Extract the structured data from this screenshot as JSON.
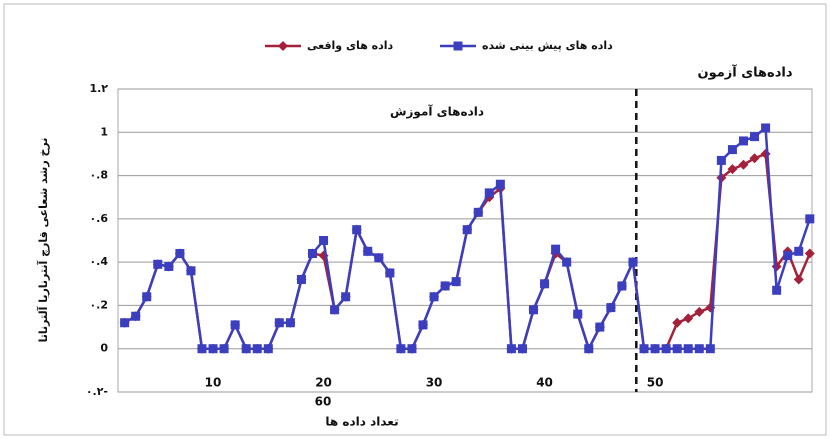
{
  "chart_data": {
    "type": "line",
    "legend_position": "top",
    "annotations": [
      "داده‌های آموزش",
      "داده‌های آزمون"
    ],
    "y_label": "نرخ رشد شعاعی قارچ آنترناریا آلترناتا",
    "x_label": "تعداد داده ها",
    "stray_tick_label": "60",
    "divider_x": 48.3,
    "grid": true,
    "xlim": [
      1.4,
      64.2
    ],
    "xticks": [
      10,
      20,
      30,
      40,
      50
    ],
    "ylim": [
      -0.2,
      1.2
    ],
    "yticks": [
      {
        "value": -0.2,
        "label": "۰.۲-"
      },
      0,
      {
        "value": 0.2,
        "label": "۰.2"
      },
      {
        "value": 0.4,
        "label": "۰.4"
      },
      {
        "value": 0.6,
        "label": "۰.6"
      },
      {
        "value": 0.8,
        "label": "۰.8"
      },
      1,
      {
        "value": 1.2,
        "label": "1.۲"
      }
    ],
    "x": [
      2,
      3,
      4,
      5,
      6,
      7,
      8,
      9,
      10,
      11,
      12,
      13,
      14,
      15,
      16,
      17,
      18,
      19,
      20,
      21,
      22,
      23,
      24,
      25,
      26,
      27,
      28,
      29,
      30,
      31,
      32,
      33,
      34,
      35,
      36,
      37,
      38,
      39,
      40,
      41,
      42,
      43,
      44,
      45,
      46,
      47,
      48,
      49,
      50,
      51,
      52,
      53,
      54,
      55,
      56,
      57,
      58,
      59,
      60,
      61,
      62,
      63,
      64
    ],
    "series": [
      {
        "name": "داده های واقعی",
        "color": "#a3213b",
        "marker": "diamond",
        "values": [
          0.12,
          0.15,
          0.24,
          0.39,
          0.38,
          0.44,
          0.36,
          0,
          0,
          0,
          0.11,
          0,
          0,
          0,
          0.12,
          0.12,
          0.32,
          0.44,
          0.43,
          0.18,
          0.24,
          0.55,
          0.45,
          0.42,
          0.35,
          0,
          0,
          0.11,
          0.24,
          0.29,
          0.31,
          0.55,
          0.63,
          0.7,
          0.74,
          0,
          0,
          0.18,
          0.3,
          0.44,
          0.4,
          0.16,
          0,
          0.1,
          0.19,
          0.29,
          0.4,
          0,
          0,
          0,
          0.12,
          0.14,
          0.17,
          0.19,
          0.79,
          0.83,
          0.85,
          0.88,
          0.9,
          0.38,
          0.45,
          0.32,
          0.44
        ]
      },
      {
        "name": "داده های پیش بینی شده",
        "color": "#3b3fbf",
        "marker": "square",
        "values": [
          0.12,
          0.15,
          0.24,
          0.39,
          0.38,
          0.44,
          0.36,
          0,
          0,
          0,
          0.11,
          0,
          0,
          0,
          0.12,
          0.12,
          0.32,
          0.44,
          0.5,
          0.18,
          0.24,
          0.55,
          0.45,
          0.42,
          0.35,
          0,
          0,
          0.11,
          0.24,
          0.29,
          0.31,
          0.55,
          0.63,
          0.72,
          0.76,
          0,
          0,
          0.18,
          0.3,
          0.46,
          0.4,
          0.16,
          0,
          0.1,
          0.19,
          0.29,
          0.4,
          0,
          0,
          0,
          0,
          0,
          0,
          0,
          0.87,
          0.92,
          0.96,
          0.98,
          1.02,
          0.27,
          0.43,
          0.45,
          0.6
        ]
      }
    ]
  }
}
